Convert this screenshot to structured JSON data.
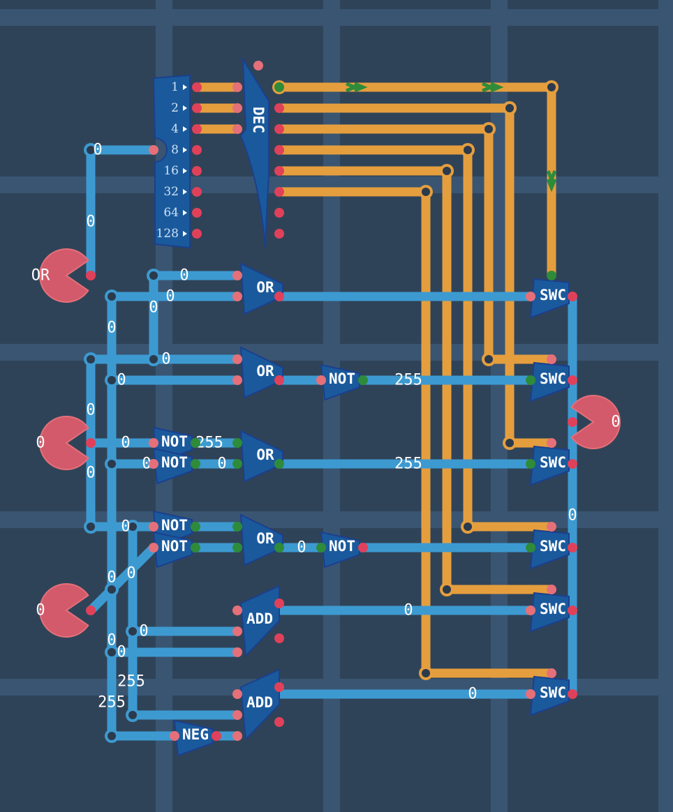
{
  "colors": {
    "background": "#2f4358",
    "grid": "#395572",
    "wire_byte": "#3d9ad1",
    "wire_bit": "#e59e3e",
    "component": "#1a5a9c",
    "pin_off": "#e0415a",
    "pin_on": "#2e8b3a",
    "io_pin": "#d25a6a"
  },
  "splitter": {
    "outputs": [
      "1",
      "2",
      "4",
      "8",
      "16",
      "32",
      "64",
      "128"
    ]
  },
  "decoder": {
    "label": "DEC"
  },
  "inputs": [
    {
      "name": "input-1",
      "value": "OR"
    },
    {
      "name": "input-2",
      "value": "0"
    },
    {
      "name": "input-3",
      "value": "0"
    }
  ],
  "output": {
    "value": "0"
  },
  "gates": {
    "or": "OR",
    "not": "NOT",
    "add": "ADD",
    "neg": "NEG",
    "swc": "SWC"
  },
  "wire_labels": [
    "0",
    "0",
    "0",
    "0",
    "0",
    "0",
    "0",
    "0",
    "0",
    "0",
    "255",
    "255",
    "255",
    "0",
    "0",
    "0",
    "0",
    "0",
    "0",
    "0",
    "0",
    "255",
    "255",
    "0",
    "0",
    "0",
    "0",
    "0"
  ]
}
